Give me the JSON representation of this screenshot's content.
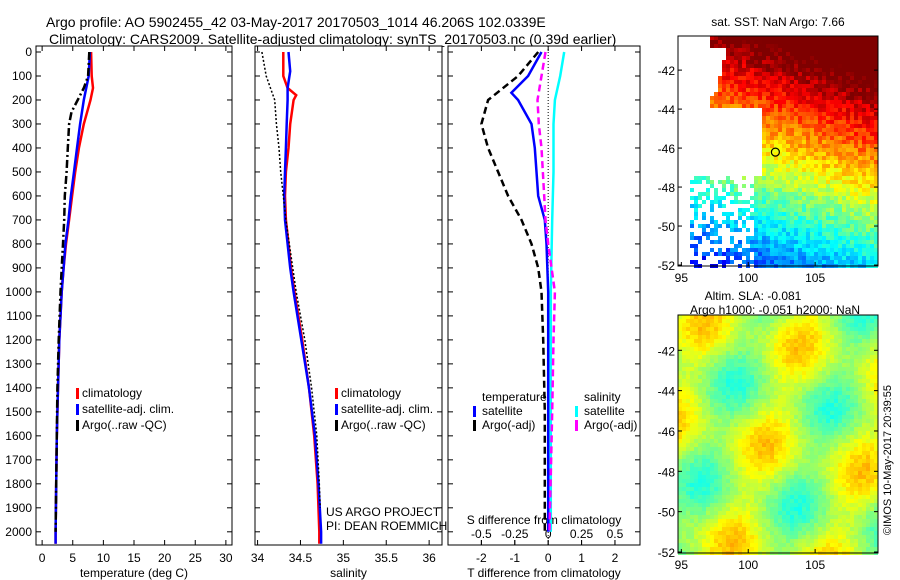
{
  "header": {
    "title_line1": "Argo profile: AO 5902455_42 03-May-2017 20170503_1014 46.206S 102.0339E",
    "title_line2": "Climatology: CARS2009. Satellite-adjusted climatology: synTS_20170503.nc (0.39d earlier)",
    "timestamp": "©IMOS 10-May-2017 20:39:55",
    "credit_line1": "US ARGO PROJECT",
    "credit_line2": "PI: DEAN ROEMMICH"
  },
  "colors": {
    "climatology": "#ff0000",
    "satellite": "#0000ff",
    "argo": "#000000",
    "sal_satellite": "#00ffff",
    "sal_argo": "#ff00ff"
  },
  "chart_data": [
    {
      "type": "line",
      "id": "temperature",
      "xlabel": "temperature (deg C)",
      "ylabel": "",
      "xlim": [
        -1,
        31
      ],
      "ylim": [
        2055,
        -25
      ],
      "xticks": [
        0,
        5,
        10,
        15,
        20,
        25,
        30
      ],
      "yticks": [
        0,
        100,
        200,
        300,
        400,
        500,
        600,
        700,
        800,
        900,
        1000,
        1100,
        1200,
        1300,
        1400,
        1500,
        1600,
        1700,
        1800,
        1900,
        2000
      ],
      "legend": [
        "climatology",
        "satellite-adj. clim.",
        "Argo(..raw -QC)"
      ],
      "series": [
        {
          "name": "climatology",
          "style": "solid",
          "color": "#ff0000",
          "depth": [
            0,
            100,
            150,
            200,
            300,
            400,
            500,
            600,
            700,
            800,
            900,
            1000,
            1200,
            1400,
            1600,
            1800,
            2000,
            2050
          ],
          "values": [
            8.0,
            8.1,
            8.3,
            7.9,
            6.8,
            6.0,
            5.4,
            4.9,
            4.4,
            3.9,
            3.5,
            3.2,
            2.8,
            2.6,
            2.4,
            2.3,
            2.2,
            2.2
          ]
        },
        {
          "name": "satellite-adj. clim.",
          "style": "solid",
          "color": "#0000ff",
          "depth": [
            0,
            100,
            200,
            300,
            400,
            500,
            600,
            700,
            800,
            900,
            1000,
            1200,
            1400,
            1600,
            1800,
            2000,
            2050
          ],
          "values": [
            7.8,
            7.6,
            6.8,
            6.2,
            5.7,
            5.2,
            4.7,
            4.3,
            3.8,
            3.5,
            3.2,
            2.8,
            2.6,
            2.4,
            2.3,
            2.2,
            2.2
          ]
        },
        {
          "name": "Argo(..raw -QC)",
          "style": "dashdot",
          "color": "#000000",
          "depth": [
            0,
            100,
            150,
            200,
            250,
            300,
            400,
            500,
            600,
            700,
            800,
            900,
            1000,
            1200,
            1400,
            1600,
            1800,
            2000
          ],
          "values": [
            7.7,
            7.5,
            6.8,
            5.8,
            4.8,
            4.4,
            4.2,
            4.0,
            3.7,
            3.6,
            3.4,
            3.2,
            3.0,
            2.7,
            2.5,
            2.4,
            2.3,
            2.2
          ]
        }
      ]
    },
    {
      "type": "line",
      "id": "salinity",
      "xlabel": "salinity",
      "xlim": [
        33.97,
        36.15
      ],
      "ylim": [
        2055,
        -25
      ],
      "xticks": [
        34,
        34.5,
        35,
        35.5,
        36
      ],
      "legend": [
        "climatology",
        "satellite-adj. clim.",
        "Argo(..raw -QC)"
      ],
      "series": [
        {
          "name": "climatology",
          "style": "solid",
          "color": "#ff0000",
          "depth": [
            0,
            100,
            150,
            180,
            200,
            300,
            400,
            500,
            600,
            700,
            800,
            900,
            1000,
            1200,
            1400,
            1600,
            1800,
            2000,
            2050
          ],
          "values": [
            34.3,
            34.3,
            34.35,
            34.45,
            34.42,
            34.38,
            34.36,
            34.33,
            34.32,
            34.33,
            34.36,
            34.39,
            34.43,
            34.52,
            34.6,
            34.66,
            34.7,
            34.72,
            34.72
          ]
        },
        {
          "name": "satellite-adj. clim.",
          "style": "solid",
          "color": "#0000ff",
          "depth": [
            0,
            80,
            150,
            200,
            300,
            400,
            500,
            600,
            700,
            800,
            900,
            1000,
            1200,
            1400,
            1600,
            1800,
            2000,
            2050
          ],
          "values": [
            34.36,
            34.38,
            34.35,
            34.35,
            34.34,
            34.33,
            34.32,
            34.31,
            34.32,
            34.35,
            34.38,
            34.42,
            34.51,
            34.6,
            34.67,
            34.71,
            34.74,
            34.74
          ]
        },
        {
          "name": "Argo(..raw -QC)",
          "style": "dotted",
          "color": "#000000",
          "depth": [
            0,
            100,
            200,
            300,
            400,
            500,
            600,
            700,
            800,
            1000,
            1200,
            1400,
            1600,
            1800,
            1900
          ],
          "values": [
            34.05,
            34.1,
            34.2,
            34.22,
            34.25,
            34.27,
            34.3,
            34.33,
            34.37,
            34.45,
            34.55,
            34.63,
            34.69,
            34.72,
            34.73
          ]
        }
      ]
    },
    {
      "type": "line",
      "id": "difference",
      "xlabel": "T difference from climatology",
      "xlabel2": "S difference from climatology",
      "xlim": [
        -3,
        2.75
      ],
      "ylim": [
        2055,
        -25
      ],
      "xticks": [
        -2,
        -1,
        0,
        1,
        2
      ],
      "xticks2": [
        -0.5,
        -0.25,
        0,
        0.25,
        0.5
      ],
      "legend_headers": [
        "temperature",
        "salinity"
      ],
      "legend": [
        "satellite",
        "Argo(-adj)",
        "satellite",
        "Argo(-adj)"
      ],
      "series": [
        {
          "name": "temperature satellite",
          "axis": "T",
          "style": "solid",
          "color": "#0000ff",
          "depth": [
            0,
            100,
            170,
            200,
            300,
            400,
            500,
            600,
            700,
            800,
            1000,
            2000
          ],
          "values": [
            -0.2,
            -0.6,
            -1.1,
            -0.9,
            -0.5,
            -0.4,
            -0.35,
            -0.3,
            -0.1,
            -0.05,
            0,
            0
          ]
        },
        {
          "name": "temperature Argo(-adj)",
          "axis": "T",
          "style": "dashed",
          "color": "#000000",
          "depth": [
            0,
            100,
            200,
            300,
            400,
            500,
            600,
            700,
            800,
            900,
            1000,
            1200,
            1500,
            2000
          ],
          "values": [
            -0.3,
            -0.9,
            -1.8,
            -2.0,
            -1.8,
            -1.5,
            -1.2,
            -0.8,
            -0.5,
            -0.3,
            -0.2,
            -0.15,
            -0.1,
            -0.1
          ]
        },
        {
          "name": "salinity satellite",
          "axis": "S",
          "style": "solid",
          "color": "#00ffff",
          "depth": [
            0,
            100,
            200,
            300,
            500,
            700,
            1000,
            2000
          ],
          "values": [
            0.12,
            0.09,
            0.05,
            0.04,
            0.04,
            0.03,
            0.02,
            0.02
          ]
        },
        {
          "name": "salinity Argo(-adj)",
          "axis": "S",
          "style": "dashed",
          "color": "#ff00ff",
          "depth": [
            0,
            100,
            200,
            300,
            400,
            600,
            700,
            800,
            1000,
            1200,
            1500,
            2000
          ],
          "values": [
            -0.02,
            -0.05,
            -0.08,
            -0.07,
            -0.05,
            -0.03,
            -0.02,
            0.0,
            0.05,
            0.04,
            0.03,
            0.01
          ]
        }
      ]
    },
    {
      "type": "heatmap",
      "id": "sst-map",
      "title": "sat. SST: NaN Argo: 7.66",
      "xticks": [
        95,
        100,
        105
      ],
      "yticks": [
        -42,
        -44,
        -46,
        -48,
        -50,
        -52
      ],
      "xlim": [
        94.75,
        109.7
      ],
      "ylim": [
        -52.05,
        -40.25
      ],
      "marker": {
        "lon": 102.03,
        "lat": -46.206
      }
    },
    {
      "type": "heatmap",
      "id": "sla-map",
      "title_line1": "Altim. SLA: -0.081",
      "title_line2": "Argo h1000: -0.051 h2000: NaN",
      "xticks": [
        95,
        100,
        105
      ],
      "yticks": [
        -42,
        -44,
        -46,
        -48,
        -50,
        -52
      ],
      "xlim": [
        94.75,
        109.7
      ],
      "ylim": [
        -52.05,
        -40.25
      ]
    }
  ]
}
